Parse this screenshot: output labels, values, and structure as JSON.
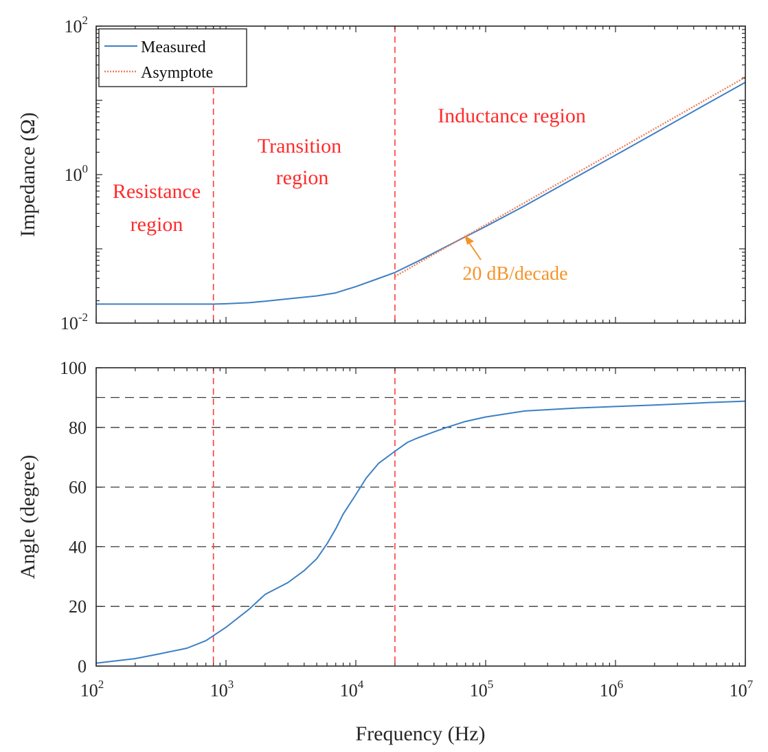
{
  "chart_data": [
    {
      "type": "line",
      "xscale": "log",
      "yscale": "log",
      "xlim": [
        100,
        10000000
      ],
      "ylim": [
        0.01,
        100
      ],
      "ylabel": "Impedance (Ω)",
      "xlabel": "",
      "yticks": [
        {
          "value": 0.01,
          "base": "10",
          "exp": "-2"
        },
        {
          "value": 1,
          "base": "10",
          "exp": "0"
        },
        {
          "value": 100,
          "base": "10",
          "exp": "2"
        }
      ],
      "series": [
        {
          "name": "Measured",
          "color": "#3b7fc4",
          "style": "solid",
          "x": [
            100,
            200,
            400,
            800,
            1000,
            1500,
            2000,
            3000,
            5000,
            7000,
            10000,
            15000,
            20000,
            30000,
            50000,
            100000,
            200000,
            500000,
            1000000,
            2000000,
            5000000,
            10000000
          ],
          "y": [
            0.018,
            0.018,
            0.018,
            0.018,
            0.0182,
            0.0188,
            0.0197,
            0.0212,
            0.0232,
            0.0255,
            0.031,
            0.04,
            0.048,
            0.068,
            0.108,
            0.2,
            0.38,
            0.93,
            1.83,
            3.6,
            8.9,
            17.5
          ]
        },
        {
          "name": "Asymptote",
          "color": "#f07b5a",
          "style": "dotted",
          "x": [
            20000,
            10000000
          ],
          "y": [
            0.0425,
            20.5
          ]
        }
      ],
      "annotations": [
        {
          "text": "Resistance",
          "color": "#ff2b2b"
        },
        {
          "text": "region",
          "color": "#ff2b2b"
        },
        {
          "text": "Transition",
          "color": "#ff2b2b"
        },
        {
          "text": "region",
          "color": "#ff2b2b"
        },
        {
          "text": "Inductance region",
          "color": "#ff2b2b"
        },
        {
          "text": "20 dB/decade",
          "color": "#f5932a"
        }
      ],
      "vlines": [
        800,
        20000
      ],
      "legend": "top-left"
    },
    {
      "type": "line",
      "xscale": "log",
      "yscale": "linear",
      "xlim": [
        100,
        10000000
      ],
      "ylim": [
        0,
        100
      ],
      "ylabel": "Angle (degree)",
      "xlabel": "Frequency (Hz)",
      "yticks": [
        0,
        20,
        40,
        60,
        80,
        100
      ],
      "xticks": [
        {
          "value": 100,
          "base": "10",
          "exp": "2"
        },
        {
          "value": 1000,
          "base": "10",
          "exp": "3"
        },
        {
          "value": 10000,
          "base": "10",
          "exp": "4"
        },
        {
          "value": 100000,
          "base": "10",
          "exp": "5"
        },
        {
          "value": 1000000,
          "base": "10",
          "exp": "6"
        },
        {
          "value": 10000000,
          "base": "10",
          "exp": "7"
        }
      ],
      "hlines": [
        20,
        40,
        60,
        80,
        90
      ],
      "vlines": [
        800,
        20000
      ],
      "series": [
        {
          "name": "Measured",
          "color": "#3b7fc4",
          "x": [
            100,
            200,
            300,
            500,
            700,
            1000,
            1500,
            2000,
            3000,
            4000,
            5000,
            6000,
            7000,
            8000,
            10000,
            12000,
            15000,
            20000,
            25000,
            30000,
            40000,
            50000,
            70000,
            100000,
            200000,
            500000,
            1000000,
            2000000,
            5000000,
            10000000
          ],
          "y": [
            1,
            2.5,
            4,
            6,
            8.5,
            13,
            19,
            24,
            28,
            32,
            36,
            41,
            46,
            51,
            57.5,
            63,
            68,
            72,
            75,
            76.5,
            78.5,
            80,
            82,
            83.5,
            85.5,
            86.5,
            87,
            87.5,
            88.3,
            88.8
          ]
        }
      ]
    }
  ],
  "legend": {
    "items": [
      {
        "label": "Measured",
        "color": "#3b7fc4",
        "style": "solid"
      },
      {
        "label": "Asymptote",
        "color": "#f07b5a",
        "style": "dotted"
      }
    ]
  }
}
